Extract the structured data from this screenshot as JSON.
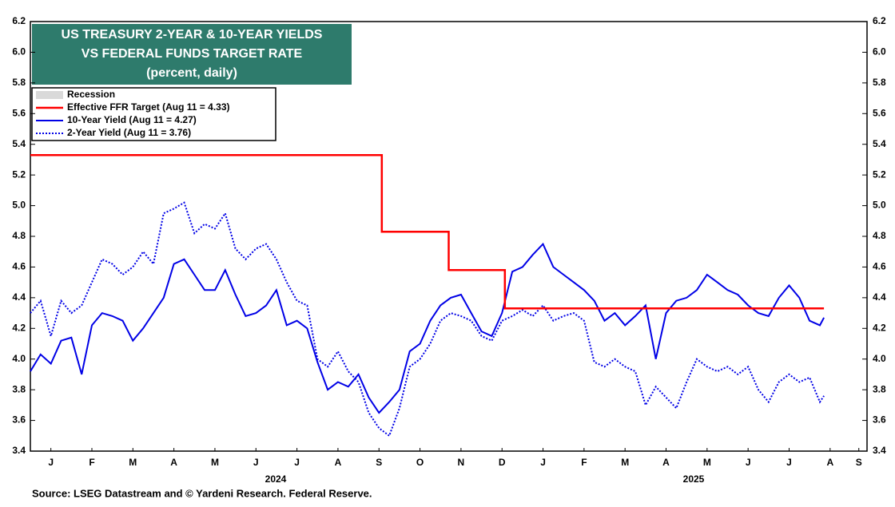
{
  "chart_data": {
    "type": "line",
    "title_lines": [
      "US TREASURY 2-YEAR & 10-YEAR YIELDS",
      "VS FEDERAL FUNDS TARGET RATE"
    ],
    "subtitle": "(percent, daily)",
    "source": "Source: LSEG Datastream and © Yardeni Research. Federal Reserve.",
    "title_box_color": "#2e7b6c",
    "recession_legend": {
      "name": "Recession",
      "color": "#d9d9d9"
    },
    "years": [
      "2024",
      "2025"
    ],
    "xlim": [
      0,
      20.4
    ],
    "xticks": [
      {
        "value": 0.5,
        "label": "J"
      },
      {
        "value": 1.5,
        "label": "F"
      },
      {
        "value": 2.5,
        "label": "M"
      },
      {
        "value": 3.5,
        "label": "A"
      },
      {
        "value": 4.5,
        "label": "M"
      },
      {
        "value": 5.5,
        "label": "J"
      },
      {
        "value": 6.5,
        "label": "J"
      },
      {
        "value": 7.5,
        "label": "A"
      },
      {
        "value": 8.5,
        "label": "S"
      },
      {
        "value": 9.5,
        "label": "O"
      },
      {
        "value": 10.5,
        "label": "N"
      },
      {
        "value": 11.5,
        "label": "D"
      },
      {
        "value": 12.5,
        "label": "J"
      },
      {
        "value": 13.5,
        "label": "F"
      },
      {
        "value": 14.5,
        "label": "M"
      },
      {
        "value": 15.5,
        "label": "A"
      },
      {
        "value": 16.5,
        "label": "M"
      },
      {
        "value": 17.5,
        "label": "J"
      },
      {
        "value": 18.5,
        "label": "J"
      },
      {
        "value": 19.5,
        "label": "A"
      },
      {
        "value": 20.2,
        "label": "S"
      }
    ],
    "ylim": [
      3.4,
      6.2
    ],
    "yticks": [
      3.4,
      3.6,
      3.8,
      {
        "value": 4,
        "label": "4.0"
      },
      4.2,
      4.4,
      4.6,
      4.8,
      {
        "value": 5,
        "label": "5.0"
      },
      5.2,
      5.4,
      5.6,
      5.8,
      {
        "value": 6,
        "label": "6.0"
      },
      6.2
    ],
    "x": [
      0,
      0.25,
      0.5,
      0.75,
      1,
      1.25,
      1.5,
      1.75,
      2,
      2.25,
      2.5,
      2.75,
      3,
      3.25,
      3.5,
      3.75,
      4,
      4.25,
      4.5,
      4.75,
      5,
      5.25,
      5.5,
      5.75,
      6,
      6.25,
      6.5,
      6.75,
      7,
      7.25,
      7.5,
      7.75,
      8,
      8.25,
      8.5,
      8.75,
      9,
      9.25,
      9.5,
      9.75,
      10,
      10.25,
      10.5,
      10.75,
      11,
      11.25,
      11.5,
      11.75,
      12,
      12.25,
      12.5,
      12.75,
      13,
      13.25,
      13.5,
      13.75,
      14,
      14.25,
      14.5,
      14.75,
      15,
      15.25,
      15.5,
      15.75,
      16,
      16.25,
      16.5,
      16.75,
      17,
      17.25,
      17.5,
      17.75,
      18,
      18.25,
      18.5,
      18.75,
      19,
      19.25,
      19.35
    ],
    "series": [
      {
        "name": "Effective FFR Target (Aug 11 = 4.33)",
        "color": "#ff0000",
        "dash": "solid",
        "width": 2.5,
        "x": [
          0,
          8.57,
          8.57,
          10.2,
          10.2,
          11.57,
          11.57,
          19.35
        ],
        "values": [
          5.33,
          5.33,
          4.83,
          4.83,
          4.58,
          4.58,
          4.33,
          4.33
        ]
      },
      {
        "name": "10-Year Yield (Aug 11 = 4.27)",
        "color": "#0000e6",
        "dash": "solid",
        "width": 2,
        "values": [
          3.92,
          4.03,
          3.97,
          4.12,
          4.14,
          3.9,
          4.22,
          4.3,
          4.28,
          4.25,
          4.12,
          4.2,
          4.3,
          4.4,
          4.62,
          4.65,
          4.55,
          4.45,
          4.45,
          4.58,
          4.42,
          4.28,
          4.3,
          4.35,
          4.45,
          4.22,
          4.25,
          4.2,
          3.98,
          3.8,
          3.85,
          3.82,
          3.9,
          3.75,
          3.65,
          3.72,
          3.8,
          4.05,
          4.1,
          4.25,
          4.35,
          4.4,
          4.42,
          4.3,
          4.18,
          4.15,
          4.3,
          4.57,
          4.6,
          4.68,
          4.75,
          4.6,
          4.55,
          4.5,
          4.45,
          4.38,
          4.25,
          4.3,
          4.22,
          4.28,
          4.35,
          4,
          4.3,
          4.38,
          4.4,
          4.45,
          4.55,
          4.5,
          4.45,
          4.42,
          4.35,
          4.3,
          4.28,
          4.4,
          4.48,
          4.4,
          4.25,
          4.22,
          4.27
        ]
      },
      {
        "name": "2-Year Yield (Aug 11 = 3.76)",
        "color": "#0000e6",
        "dash": "dotted",
        "width": 2,
        "values": [
          4.3,
          4.38,
          4.15,
          4.38,
          4.3,
          4.35,
          4.5,
          4.65,
          4.62,
          4.55,
          4.6,
          4.7,
          4.62,
          4.95,
          4.98,
          5.02,
          4.82,
          4.88,
          4.85,
          4.95,
          4.72,
          4.65,
          4.72,
          4.75,
          4.65,
          4.5,
          4.38,
          4.35,
          4,
          3.95,
          4.05,
          3.92,
          3.85,
          3.65,
          3.55,
          3.5,
          3.68,
          3.95,
          4,
          4.1,
          4.25,
          4.3,
          4.28,
          4.25,
          4.15,
          4.12,
          4.25,
          4.28,
          4.32,
          4.28,
          4.35,
          4.25,
          4.28,
          4.3,
          4.25,
          3.98,
          3.95,
          4,
          3.95,
          3.92,
          3.7,
          3.82,
          3.75,
          3.68,
          3.85,
          4,
          3.95,
          3.92,
          3.95,
          3.9,
          3.95,
          3.8,
          3.72,
          3.85,
          3.9,
          3.85,
          3.88,
          3.72,
          3.76
        ]
      }
    ]
  }
}
